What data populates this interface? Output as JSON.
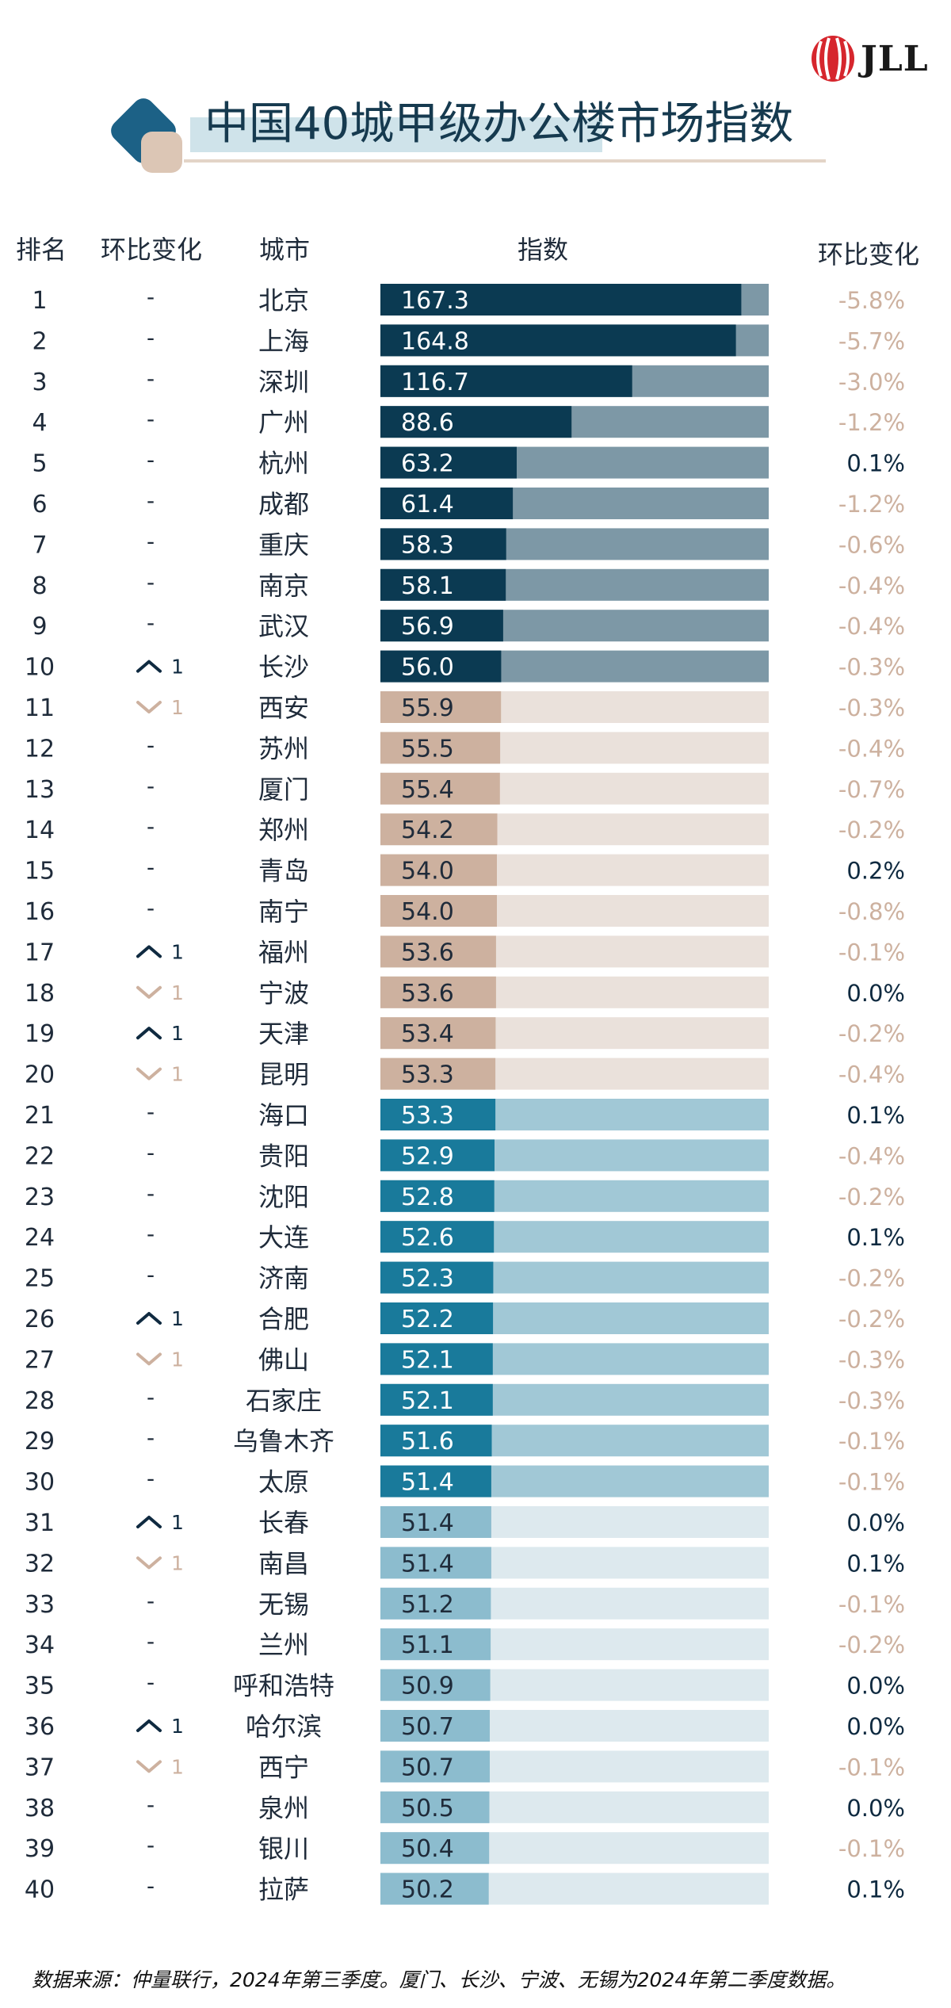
{
  "brand": {
    "logo_text": "JLL",
    "logo_color": "#d6262d"
  },
  "title": "中国40城甲级办公楼市场指数",
  "headers": {
    "rank": "排名",
    "change_rank": "环比变化",
    "city": "城市",
    "index": "指数",
    "change_index": "环比变化"
  },
  "colors": {
    "tier1_fill": "#0b3a52",
    "tier1_track": "#7d98a6",
    "tier2_fill": "#cdb19f",
    "tier2_track": "#eae1db",
    "tier3_fill": "#197a9b",
    "tier3_track": "#a1c8d6",
    "tier4_fill": "#8cbcce",
    "tier4_track": "#dde9ee",
    "positive_text": "#0f2a40",
    "negative_text": "#cdb19f",
    "up_arrow": "#0f2a40",
    "down_arrow": "#cdb19f"
  },
  "chart_data": {
    "type": "bar",
    "xlim": [
      0,
      180
    ],
    "tiers": [
      [
        1,
        10
      ],
      [
        11,
        20
      ],
      [
        21,
        30
      ],
      [
        31,
        40
      ]
    ],
    "rows": [
      {
        "rank": "1",
        "change": "-",
        "city": "北京",
        "value": 167.3,
        "qoq": "-5.8%"
      },
      {
        "rank": "2",
        "change": "-",
        "city": "上海",
        "value": 164.8,
        "qoq": "-5.7%"
      },
      {
        "rank": "3",
        "change": "-",
        "city": "深圳",
        "value": 116.7,
        "qoq": "-3.0%"
      },
      {
        "rank": "4",
        "change": "-",
        "city": "广州",
        "value": 88.6,
        "qoq": "-1.2%"
      },
      {
        "rank": "5",
        "change": "-",
        "city": "杭州",
        "value": 63.2,
        "qoq": "0.1%"
      },
      {
        "rank": "6",
        "change": "-",
        "city": "成都",
        "value": 61.4,
        "qoq": "-1.2%"
      },
      {
        "rank": "7",
        "change": "-",
        "city": "重庆",
        "value": 58.3,
        "qoq": "-0.6%"
      },
      {
        "rank": "8",
        "change": "-",
        "city": "南京",
        "value": 58.1,
        "qoq": "-0.4%"
      },
      {
        "rank": "9",
        "change": "-",
        "city": "武汉",
        "value": 56.9,
        "qoq": "-0.4%"
      },
      {
        "rank": "10",
        "change": "up 1",
        "city": "长沙",
        "value": 56.0,
        "qoq": "-0.3%"
      },
      {
        "rank": "11",
        "change": "down 1",
        "city": "西安",
        "value": 55.9,
        "qoq": "-0.3%"
      },
      {
        "rank": "12",
        "change": "-",
        "city": "苏州",
        "value": 55.5,
        "qoq": "-0.4%"
      },
      {
        "rank": "13",
        "change": "-",
        "city": "厦门",
        "value": 55.4,
        "qoq": "-0.7%"
      },
      {
        "rank": "14",
        "change": "-",
        "city": "郑州",
        "value": 54.2,
        "qoq": "-0.2%"
      },
      {
        "rank": "15",
        "change": "-",
        "city": "青岛",
        "value": 54.0,
        "qoq": "0.2%"
      },
      {
        "rank": "16",
        "change": "-",
        "city": "南宁",
        "value": 54.0,
        "qoq": "-0.8%"
      },
      {
        "rank": "17",
        "change": "up 1",
        "city": "福州",
        "value": 53.6,
        "qoq": "-0.1%"
      },
      {
        "rank": "18",
        "change": "down 1",
        "city": "宁波",
        "value": 53.6,
        "qoq": "0.0%"
      },
      {
        "rank": "19",
        "change": "up 1",
        "city": "天津",
        "value": 53.4,
        "qoq": "-0.2%"
      },
      {
        "rank": "20",
        "change": "down 1",
        "city": "昆明",
        "value": 53.3,
        "qoq": "-0.4%"
      },
      {
        "rank": "21",
        "change": "-",
        "city": "海口",
        "value": 53.3,
        "qoq": "0.1%"
      },
      {
        "rank": "22",
        "change": "-",
        "city": "贵阳",
        "value": 52.9,
        "qoq": "-0.4%"
      },
      {
        "rank": "23",
        "change": "-",
        "city": "沈阳",
        "value": 52.8,
        "qoq": "-0.2%"
      },
      {
        "rank": "24",
        "change": "-",
        "city": "大连",
        "value": 52.6,
        "qoq": "0.1%"
      },
      {
        "rank": "25",
        "change": "-",
        "city": "济南",
        "value": 52.3,
        "qoq": "-0.2%"
      },
      {
        "rank": "26",
        "change": "up 1",
        "city": "合肥",
        "value": 52.2,
        "qoq": "-0.2%"
      },
      {
        "rank": "27",
        "change": "down 1",
        "city": "佛山",
        "value": 52.1,
        "qoq": "-0.3%"
      },
      {
        "rank": "28",
        "change": "-",
        "city": "石家庄",
        "value": 52.1,
        "qoq": "-0.3%"
      },
      {
        "rank": "29",
        "change": "-",
        "city": "乌鲁木齐",
        "value": 51.6,
        "qoq": "-0.1%"
      },
      {
        "rank": "30",
        "change": "-",
        "city": "太原",
        "value": 51.4,
        "qoq": "-0.1%"
      },
      {
        "rank": "31",
        "change": "up 1",
        "city": "长春",
        "value": 51.4,
        "qoq": "0.0%"
      },
      {
        "rank": "32",
        "change": "down 1",
        "city": "南昌",
        "value": 51.4,
        "qoq": "0.1%"
      },
      {
        "rank": "33",
        "change": "-",
        "city": "无锡",
        "value": 51.2,
        "qoq": "-0.1%"
      },
      {
        "rank": "34",
        "change": "-",
        "city": "兰州",
        "value": 51.1,
        "qoq": "-0.2%"
      },
      {
        "rank": "35",
        "change": "-",
        "city": "呼和浩特",
        "value": 50.9,
        "qoq": "0.0%"
      },
      {
        "rank": "36",
        "change": "up 1",
        "city": "哈尔滨",
        "value": 50.7,
        "qoq": "0.0%"
      },
      {
        "rank": "37",
        "change": "down 1",
        "city": "西宁",
        "value": 50.7,
        "qoq": "-0.1%"
      },
      {
        "rank": "38",
        "change": "-",
        "city": "泉州",
        "value": 50.5,
        "qoq": "0.0%"
      },
      {
        "rank": "39",
        "change": "-",
        "city": "银川",
        "value": 50.4,
        "qoq": "-0.1%"
      },
      {
        "rank": "40",
        "change": "-",
        "city": "拉萨",
        "value": 50.2,
        "qoq": "0.1%"
      }
    ]
  },
  "source": "数据来源：仲量联行，2024年第三季度。厦门、长沙、宁波、无锡为2024年第二季度数据。"
}
